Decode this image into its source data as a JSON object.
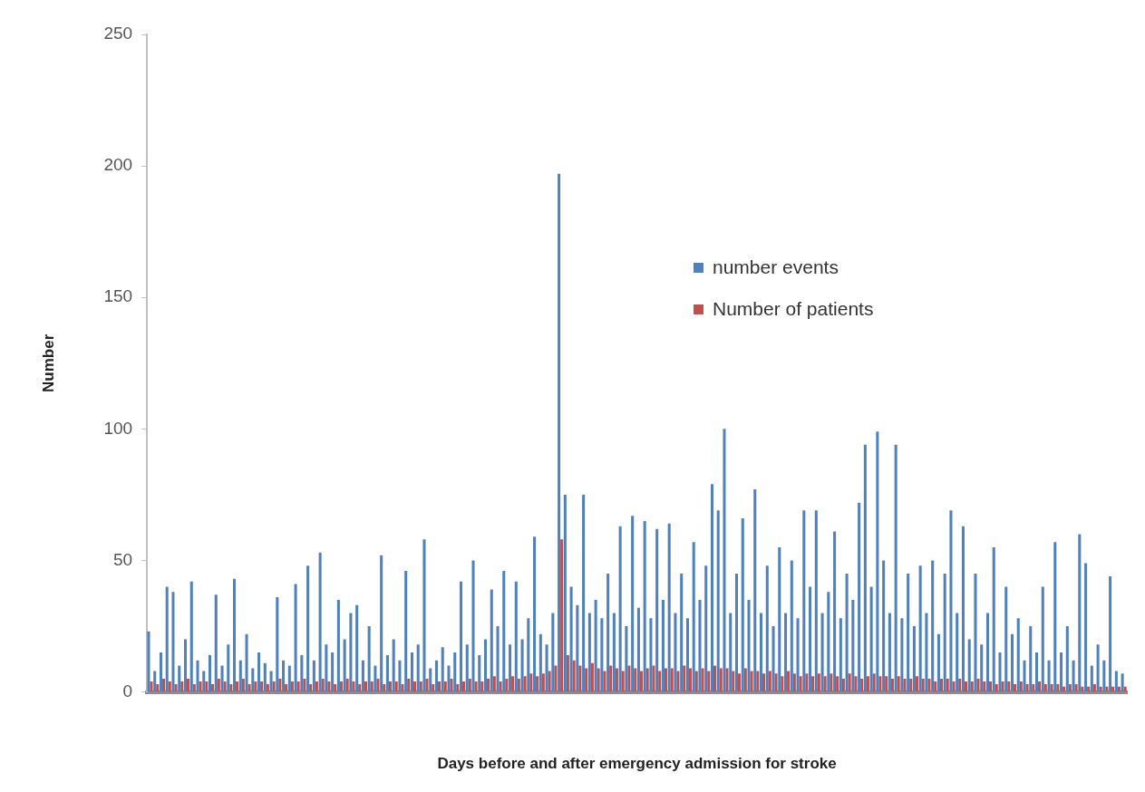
{
  "chart_data": {
    "type": "bar",
    "xlabel": "Days before and after emergency admission for stroke",
    "ylabel": "Number",
    "categories": [
      null,
      null,
      null,
      null,
      null,
      null,
      null,
      null,
      null,
      null,
      null,
      null,
      null,
      null,
      null,
      null,
      null,
      null,
      null,
      null,
      null,
      null,
      null,
      null,
      null,
      null,
      null,
      null,
      null,
      null,
      null,
      null,
      null,
      null,
      null,
      null,
      null,
      null,
      null,
      null,
      null,
      null,
      null,
      null,
      null,
      null,
      null,
      null,
      null,
      null,
      null,
      null,
      null,
      null,
      null,
      null,
      null,
      null,
      null,
      null,
      null,
      null,
      null,
      null,
      null,
      null,
      null,
      null,
      null,
      null,
      null,
      null,
      null,
      null,
      null,
      null,
      null,
      null,
      null,
      null,
      null,
      null,
      null,
      null,
      null,
      null,
      null,
      null,
      null,
      null,
      null,
      null,
      null,
      null,
      null,
      null,
      null,
      null,
      null,
      null,
      null,
      null,
      null,
      null,
      null,
      null,
      null,
      null,
      null,
      null,
      null,
      null,
      null,
      null,
      null,
      null,
      null,
      null,
      null,
      null,
      null,
      null,
      null,
      null,
      null,
      null,
      null,
      null,
      null,
      null,
      null,
      null,
      null,
      null,
      null,
      null,
      null,
      null,
      null,
      null,
      null,
      null,
      null,
      null,
      null,
      null,
      null,
      null,
      null,
      null,
      null,
      null,
      null,
      null,
      null,
      null,
      null,
      null,
      null,
      null
    ],
    "series": [
      {
        "name": "number events",
        "color": "#4f81bd",
        "values": [
          23,
          8,
          15,
          40,
          38,
          10,
          20,
          42,
          12,
          8,
          14,
          37,
          10,
          18,
          43,
          12,
          22,
          9,
          15,
          11,
          8,
          36,
          12,
          10,
          41,
          14,
          48,
          12,
          53,
          18,
          15,
          35,
          20,
          30,
          33,
          12,
          25,
          10,
          52,
          14,
          20,
          12,
          46,
          15,
          18,
          58,
          9,
          12,
          17,
          10,
          15,
          42,
          18,
          50,
          14,
          20,
          39,
          25,
          46,
          18,
          42,
          20,
          28,
          59,
          22,
          18,
          30,
          197,
          75,
          40,
          33,
          75,
          30,
          35,
          28,
          45,
          30,
          63,
          25,
          67,
          32,
          65,
          28,
          62,
          35,
          64,
          30,
          45,
          28,
          57,
          35,
          48,
          79,
          69,
          100,
          30,
          45,
          66,
          35,
          77,
          30,
          48,
          25,
          55,
          30,
          50,
          28,
          69,
          40,
          69,
          30,
          38,
          61,
          28,
          45,
          35,
          72,
          94,
          40,
          99,
          50,
          30,
          94,
          28,
          45,
          25,
          48,
          30,
          50,
          22,
          45,
          69,
          30,
          63,
          20,
          45,
          18,
          30,
          55,
          15,
          40,
          22,
          28,
          12,
          25,
          15,
          40,
          12,
          57,
          15,
          25,
          12,
          60,
          49,
          10,
          18,
          12,
          44,
          8,
          7
        ]
      },
      {
        "name": "Number of patients",
        "color": "#c0504d",
        "values": [
          4,
          3,
          5,
          4,
          3,
          4,
          5,
          3,
          4,
          4,
          3,
          5,
          4,
          3,
          4,
          5,
          3,
          4,
          4,
          3,
          4,
          5,
          3,
          4,
          4,
          5,
          3,
          4,
          5,
          4,
          3,
          4,
          5,
          4,
          3,
          4,
          4,
          5,
          3,
          4,
          4,
          3,
          5,
          4,
          4,
          5,
          3,
          4,
          4,
          5,
          3,
          4,
          5,
          4,
          4,
          5,
          6,
          4,
          5,
          6,
          5,
          6,
          7,
          6,
          7,
          8,
          10,
          58,
          14,
          12,
          10,
          9,
          11,
          9,
          8,
          10,
          9,
          8,
          10,
          9,
          8,
          9,
          10,
          8,
          9,
          9,
          8,
          10,
          9,
          8,
          9,
          8,
          10,
          9,
          9,
          8,
          7,
          9,
          8,
          8,
          7,
          8,
          7,
          6,
          8,
          7,
          6,
          7,
          6,
          7,
          6,
          7,
          6,
          5,
          7,
          6,
          5,
          6,
          7,
          6,
          6,
          5,
          6,
          5,
          5,
          6,
          5,
          5,
          4,
          5,
          5,
          4,
          5,
          4,
          4,
          5,
          4,
          4,
          3,
          4,
          4,
          3,
          4,
          3,
          3,
          4,
          3,
          3,
          3,
          2,
          3,
          3,
          2,
          2,
          3,
          2,
          2,
          2,
          2,
          2
        ]
      }
    ],
    "ylim": [
      0,
      250
    ],
    "yticks": [
      0,
      50,
      100,
      150,
      200,
      250
    ],
    "grid": false,
    "legend": "right",
    "tick_labels": "y"
  }
}
